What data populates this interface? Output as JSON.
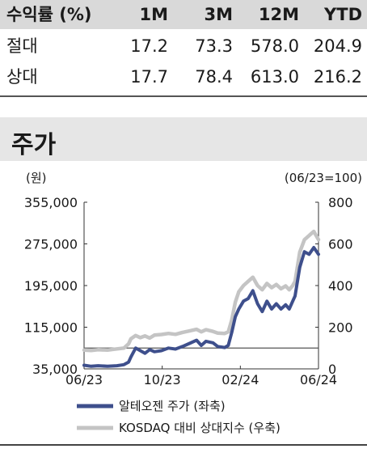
{
  "returns": {
    "header": [
      "수익률 (%)",
      "1M",
      "3M",
      "12M",
      "YTD"
    ],
    "rows": [
      {
        "label": "절대",
        "values": [
          "17.2",
          "73.3",
          "578.0",
          "204.9"
        ]
      },
      {
        "label": "상대",
        "values": [
          "17.7",
          "78.4",
          "613.0",
          "216.2"
        ]
      }
    ]
  },
  "section": {
    "title": "주가"
  },
  "chart_data": {
    "type": "line",
    "left_unit": "(원)",
    "right_unit": "(06/23=100)",
    "x_ticks": [
      "06/23",
      "10/23",
      "02/24",
      "06/24"
    ],
    "left_axis": {
      "min": 35000,
      "max": 355000,
      "ticks": [
        "355,000",
        "275,000",
        "195,000",
        "115,000",
        "35,000"
      ],
      "tick_values": [
        355000,
        275000,
        195000,
        115000,
        35000
      ]
    },
    "right_axis": {
      "min": 0,
      "max": 800,
      "ticks": [
        "800",
        "600",
        "400",
        "200",
        "0"
      ],
      "tick_values": [
        800,
        600,
        400,
        200,
        0
      ]
    },
    "reference_line": {
      "axis": "right",
      "value": 100
    },
    "grid": false,
    "legend_position": "bottom",
    "series": [
      {
        "name": "알테오젠 주가 (좌축)",
        "axis": "left",
        "color": "#3e4f8c",
        "x": [
          0,
          0.03,
          0.06,
          0.1,
          0.14,
          0.17,
          0.19,
          0.2,
          0.22,
          0.24,
          0.26,
          0.28,
          0.3,
          0.33,
          0.36,
          0.39,
          0.42,
          0.45,
          0.48,
          0.5,
          0.52,
          0.55,
          0.57,
          0.6,
          0.615,
          0.63,
          0.645,
          0.66,
          0.68,
          0.7,
          0.72,
          0.74,
          0.76,
          0.78,
          0.8,
          0.82,
          0.84,
          0.86,
          0.875,
          0.89,
          0.9,
          0.92,
          0.94,
          0.96,
          0.98,
          1.0
        ],
        "values": [
          42000,
          40000,
          41000,
          40000,
          41000,
          43000,
          48000,
          58000,
          75000,
          70000,
          65000,
          72000,
          68000,
          70000,
          75000,
          73000,
          78000,
          84000,
          90000,
          80000,
          88000,
          85000,
          78000,
          76000,
          80000,
          105000,
          135000,
          150000,
          165000,
          170000,
          185000,
          160000,
          145000,
          165000,
          150000,
          160000,
          150000,
          158000,
          150000,
          165000,
          175000,
          230000,
          260000,
          255000,
          268000,
          255000
        ]
      },
      {
        "name": "KOSDAQ 대비 상대지수 (우축)",
        "axis": "right",
        "color": "#c4c4c4",
        "x": [
          0,
          0.03,
          0.06,
          0.1,
          0.14,
          0.17,
          0.19,
          0.2,
          0.22,
          0.24,
          0.26,
          0.28,
          0.3,
          0.33,
          0.36,
          0.39,
          0.42,
          0.45,
          0.48,
          0.5,
          0.52,
          0.55,
          0.57,
          0.6,
          0.615,
          0.63,
          0.645,
          0.66,
          0.68,
          0.7,
          0.72,
          0.74,
          0.76,
          0.78,
          0.8,
          0.82,
          0.84,
          0.86,
          0.875,
          0.89,
          0.9,
          0.92,
          0.94,
          0.96,
          0.98,
          1.0
        ],
        "values": [
          90,
          88,
          92,
          90,
          96,
          100,
          120,
          145,
          160,
          150,
          158,
          148,
          162,
          165,
          170,
          166,
          175,
          182,
          190,
          178,
          188,
          180,
          172,
          170,
          178,
          235,
          320,
          370,
          400,
          420,
          440,
          400,
          380,
          410,
          390,
          405,
          385,
          398,
          380,
          400,
          420,
          560,
          620,
          640,
          660,
          620
        ]
      }
    ]
  }
}
